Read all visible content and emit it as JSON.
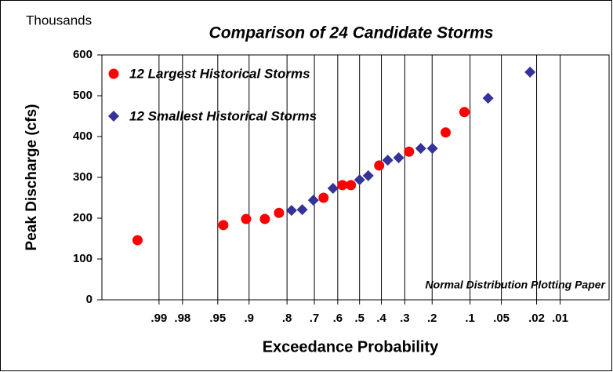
{
  "chart_data": {
    "type": "scatter",
    "title": "Comparison of 24 Candidate Storms",
    "y_unit_label": "Thousands",
    "y_label": "Peak Discharge (cfs)",
    "x_label": "Exceedance Probability",
    "annotation": "Normal Distribution Plotting Paper",
    "x_scale": "normal-probability",
    "x_reversed": true,
    "xlim": [
      0.9986,
      0.0019
    ],
    "xticks": [
      {
        "value": 0.99,
        "label": ".99"
      },
      {
        "value": 0.98,
        "label": ".98"
      },
      {
        "value": 0.95,
        "label": ".95"
      },
      {
        "value": 0.9,
        "label": ".9"
      },
      {
        "value": 0.8,
        "label": ".8"
      },
      {
        "value": 0.7,
        "label": ".7"
      },
      {
        "value": 0.6,
        "label": ".6"
      },
      {
        "value": 0.5,
        "label": ".5"
      },
      {
        "value": 0.4,
        "label": ".4"
      },
      {
        "value": 0.3,
        "label": ".3"
      },
      {
        "value": 0.2,
        "label": ".2"
      },
      {
        "value": 0.1,
        "label": ".1"
      },
      {
        "value": 0.05,
        "label": ".05"
      },
      {
        "value": 0.02,
        "label": ".02"
      },
      {
        "value": 0.01,
        "label": ".01"
      }
    ],
    "ylim": [
      0,
      600
    ],
    "yticks": [
      0,
      100,
      200,
      300,
      400,
      500,
      600
    ],
    "x_grid": true,
    "legend_position": "upper-left",
    "series": [
      {
        "name": "12 Largest Historical Storms",
        "color": "#ff0000",
        "marker": "circle",
        "x": [
          0.995,
          0.943,
          0.906,
          0.864,
          0.825,
          0.662,
          0.579,
          0.54,
          0.41,
          0.283,
          0.159,
          0.112
        ],
        "values": [
          146,
          183,
          198,
          198,
          213,
          250,
          281,
          281,
          329,
          363,
          410,
          460
        ]
      },
      {
        "name": "12 Smallest Historical Storms",
        "color": "#333399",
        "marker": "diamond",
        "x": [
          0.785,
          0.747,
          0.704,
          0.621,
          0.5,
          0.46,
          0.372,
          0.325,
          0.239,
          0.199,
          0.068,
          0.024
        ],
        "values": [
          219,
          221,
          244,
          273,
          294,
          304,
          342,
          348,
          371,
          371,
          494,
          558
        ]
      }
    ]
  }
}
